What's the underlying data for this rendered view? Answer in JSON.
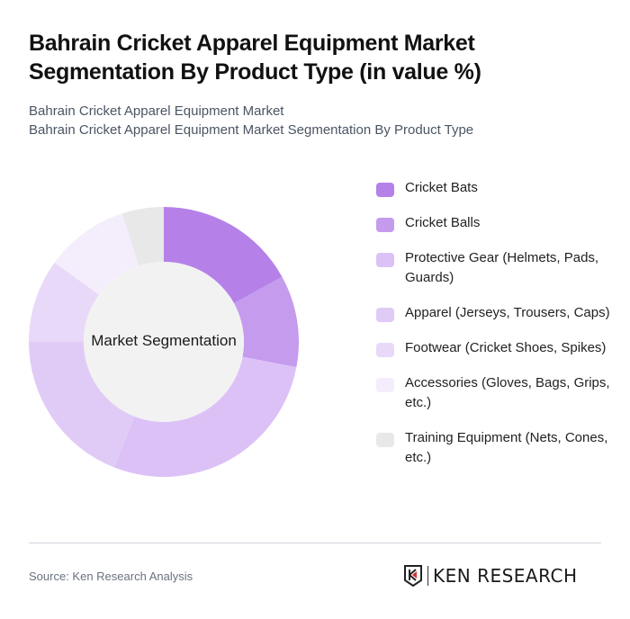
{
  "header": {
    "title": "Bahrain Cricket Apparel Equipment Market Segmentation By Product Type (in value %)",
    "subtitle_line1": "Bahrain Cricket Apparel Equipment Market",
    "subtitle_line2": "Bahrain Cricket Apparel Equipment Market Segmentation By Product Type"
  },
  "chart": {
    "center_label": "Market Segmentation"
  },
  "legend": [
    {
      "label": "Cricket Bats",
      "color": "#b581e9"
    },
    {
      "label": "Cricket Balls",
      "color": "#c59bee"
    },
    {
      "label": "Protective Gear (Helmets, Pads, Guards)",
      "color": "#dcc1f7"
    },
    {
      "label": "Apparel (Jerseys, Trousers, Caps)",
      "color": "#e0cbf7"
    },
    {
      "label": "Footwear (Cricket Shoes, Spikes)",
      "color": "#e9d9f8"
    },
    {
      "label": "Accessories (Gloves, Bags, Grips, etc.)",
      "color": "#f3edfc"
    },
    {
      "label": "Training Equipment (Nets, Cones, etc.)",
      "color": "#e8e8e8"
    }
  ],
  "footer": {
    "source": "Source: Ken Research Analysis",
    "logo_text": "KEN RESEARCH"
  },
  "chart_data": {
    "type": "pie",
    "subtype": "donut",
    "title": "Bahrain Cricket Apparel Equipment Market Segmentation By Product Type (in value %)",
    "center_label": "Market Segmentation",
    "categories": [
      "Cricket Bats",
      "Cricket Balls",
      "Protective Gear (Helmets, Pads, Guards)",
      "Apparel (Jerseys, Trousers, Caps)",
      "Footwear (Cricket Shoes, Spikes)",
      "Accessories (Gloves, Bags, Grips, etc.)",
      "Training Equipment (Nets, Cones, etc.)"
    ],
    "values": [
      17,
      11,
      28,
      19,
      10,
      10,
      5
    ],
    "colors": [
      "#b581e9",
      "#c59bee",
      "#dcc1f7",
      "#e0cbf7",
      "#e9d9f8",
      "#f3edfc",
      "#e8e8e8"
    ],
    "legend_position": "right",
    "start_angle": "12 o'clock, clockwise"
  }
}
